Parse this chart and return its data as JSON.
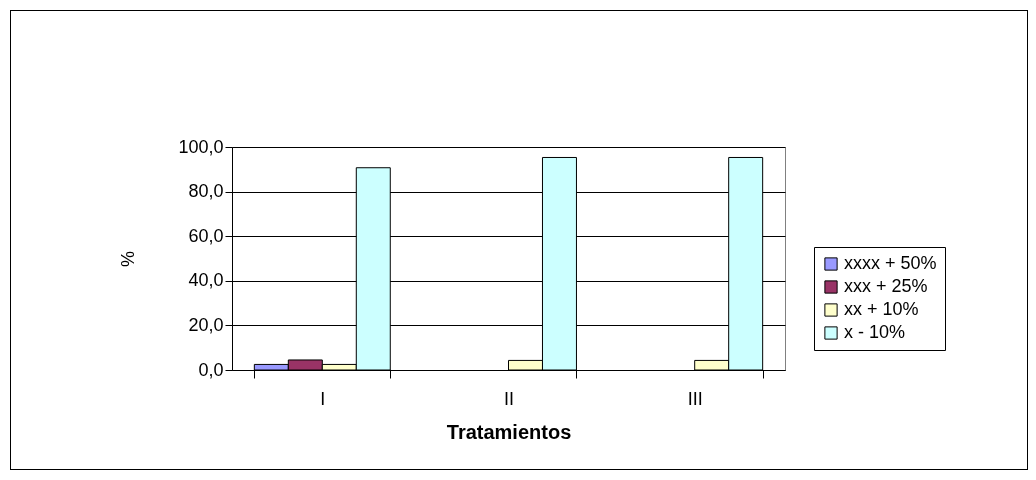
{
  "chart_data": {
    "type": "bar",
    "xlabel": "Tratamientos",
    "ylabel": "%",
    "categories": [
      "I",
      "II",
      "III"
    ],
    "series": [
      {
        "name": "xxxx + 50%",
        "color": "#9999ff",
        "values": [
          2.5,
          null,
          null
        ]
      },
      {
        "name": "xxx + 25%",
        "color": "#993366",
        "values": [
          4.5,
          null,
          null
        ]
      },
      {
        "name": "xx + 10%",
        "color": "#ffffcc",
        "values": [
          2.5,
          4.3,
          4.3
        ]
      },
      {
        "name": "x - 10%",
        "color": "#ccffff",
        "values": [
          90.7,
          95.3,
          95.3
        ]
      }
    ],
    "ylim": [
      0,
      100
    ],
    "yticks": [
      {
        "value": 0,
        "label": "0,0"
      },
      {
        "value": 20,
        "label": "20,0"
      },
      {
        "value": 40,
        "label": "40,0"
      },
      {
        "value": 60,
        "label": "60,0"
      },
      {
        "value": 80,
        "label": "80,0"
      },
      {
        "value": 100,
        "label": "100,0"
      }
    ],
    "grid": "y",
    "legend": "right"
  }
}
